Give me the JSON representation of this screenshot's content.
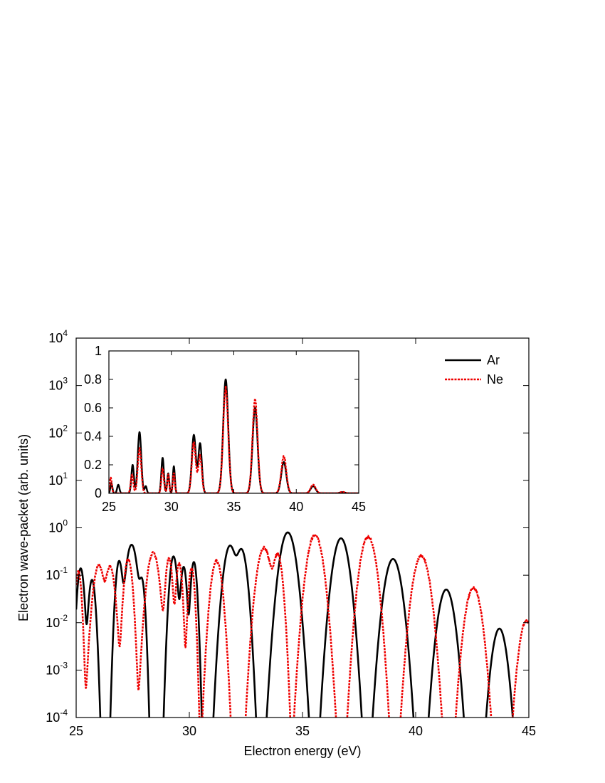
{
  "chart_data": [
    {
      "type": "line",
      "title": "",
      "xlabel": "Electron energy (eV)",
      "ylabel": "Electron wave-packet (arb. units)",
      "xlim": [
        25,
        45
      ],
      "ylim": [
        0.0001,
        10000
      ],
      "yscale": "log",
      "xticks": [
        "25",
        "30",
        "35",
        "40",
        "45"
      ],
      "yticks": [
        {
          "base": "10",
          "exp": "-4"
        },
        {
          "base": "10",
          "exp": "-3"
        },
        {
          "base": "10",
          "exp": "-2"
        },
        {
          "base": "10",
          "exp": "-1"
        },
        {
          "base": "10",
          "exp": "0"
        },
        {
          "base": "10",
          "exp": "1"
        },
        {
          "base": "10",
          "exp": "2"
        },
        {
          "base": "10",
          "exp": "3"
        },
        {
          "base": "10",
          "exp": "4"
        }
      ],
      "legend": "top-right",
      "series": [
        {
          "name": "Ar",
          "color": "#000000",
          "style": "solid",
          "peaks": [
            {
              "center": 25.2,
              "height": 0.14,
              "width": 0.1
            },
            {
              "center": 25.7,
              "height": 0.08,
              "width": 0.1
            },
            {
              "center": 26.9,
              "height": 0.2,
              "width": 0.1
            },
            {
              "center": 27.45,
              "height": 0.44,
              "width": 0.16
            },
            {
              "center": 27.9,
              "height": 0.08,
              "width": 0.09
            },
            {
              "center": 29.3,
              "height": 0.25,
              "width": 0.11
            },
            {
              "center": 29.75,
              "height": 0.15,
              "width": 0.09
            },
            {
              "center": 30.2,
              "height": 0.19,
              "width": 0.09
            },
            {
              "center": 31.8,
              "height": 0.42,
              "width": 0.18
            },
            {
              "center": 32.3,
              "height": 0.35,
              "width": 0.16
            },
            {
              "center": 34.35,
              "height": 0.8,
              "width": 0.22
            },
            {
              "center": 36.7,
              "height": 0.6,
              "width": 0.22
            },
            {
              "center": 39.0,
              "height": 0.22,
              "width": 0.23
            },
            {
              "center": 41.35,
              "height": 0.05,
              "width": 0.22
            },
            {
              "center": 43.7,
              "height": 0.0075,
              "width": 0.2
            }
          ]
        },
        {
          "name": "Ne",
          "color": "#ee0000",
          "style": "dashed",
          "peaks": [
            {
              "center": 25.1,
              "height": 0.12,
              "width": 0.09
            },
            {
              "center": 26.0,
              "height": 0.16,
              "width": 0.16
            },
            {
              "center": 26.5,
              "height": 0.15,
              "width": 0.14
            },
            {
              "center": 27.3,
              "height": 0.22,
              "width": 0.12
            },
            {
              "center": 28.4,
              "height": 0.3,
              "width": 0.17
            },
            {
              "center": 29.1,
              "height": 0.23,
              "width": 0.1
            },
            {
              "center": 29.55,
              "height": 0.18,
              "width": 0.09
            },
            {
              "center": 30.1,
              "height": 0.14,
              "width": 0.09
            },
            {
              "center": 31.2,
              "height": 0.2,
              "width": 0.16
            },
            {
              "center": 33.3,
              "height": 0.38,
              "width": 0.2
            },
            {
              "center": 33.9,
              "height": 0.28,
              "width": 0.14
            },
            {
              "center": 35.55,
              "height": 0.7,
              "width": 0.22
            },
            {
              "center": 37.9,
              "height": 0.65,
              "width": 0.22
            },
            {
              "center": 40.25,
              "height": 0.26,
              "width": 0.23
            },
            {
              "center": 42.55,
              "height": 0.055,
              "width": 0.22
            },
            {
              "center": 44.9,
              "height": 0.011,
              "width": 0.2
            }
          ]
        }
      ]
    },
    {
      "type": "line",
      "title": "",
      "xlabel": "",
      "ylabel": "",
      "xlim": [
        25,
        45
      ],
      "ylim": [
        0,
        1
      ],
      "xticks": [
        "25",
        "30",
        "35",
        "40",
        "45"
      ],
      "yticks": [
        "0",
        "0.2",
        "0.4",
        "0.6",
        "0.8",
        "1"
      ],
      "series": [
        {
          "name": "Ar",
          "color": "#000000",
          "style": "solid",
          "peaks": [
            {
              "center": 25.2,
              "height": 0.07,
              "width": 0.08
            },
            {
              "center": 25.75,
              "height": 0.06,
              "width": 0.09
            },
            {
              "center": 26.9,
              "height": 0.2,
              "width": 0.1
            },
            {
              "center": 27.45,
              "height": 0.43,
              "width": 0.14
            },
            {
              "center": 27.95,
              "height": 0.05,
              "width": 0.08
            },
            {
              "center": 29.3,
              "height": 0.25,
              "width": 0.1
            },
            {
              "center": 29.75,
              "height": 0.14,
              "width": 0.08
            },
            {
              "center": 30.2,
              "height": 0.19,
              "width": 0.08
            },
            {
              "center": 31.8,
              "height": 0.41,
              "width": 0.16
            },
            {
              "center": 32.3,
              "height": 0.35,
              "width": 0.14
            },
            {
              "center": 34.35,
              "height": 0.8,
              "width": 0.2
            },
            {
              "center": 36.7,
              "height": 0.6,
              "width": 0.2
            },
            {
              "center": 39.0,
              "height": 0.22,
              "width": 0.2
            },
            {
              "center": 41.35,
              "height": 0.05,
              "width": 0.2
            },
            {
              "center": 43.7,
              "height": 0.008,
              "width": 0.2
            }
          ]
        },
        {
          "name": "Ne",
          "color": "#ee0000",
          "style": "dashed",
          "peaks": [
            {
              "center": 25.15,
              "height": 0.11,
              "width": 0.08
            },
            {
              "center": 26.85,
              "height": 0.13,
              "width": 0.1
            },
            {
              "center": 27.45,
              "height": 0.31,
              "width": 0.14
            },
            {
              "center": 29.3,
              "height": 0.17,
              "width": 0.1
            },
            {
              "center": 29.75,
              "height": 0.13,
              "width": 0.08
            },
            {
              "center": 30.2,
              "height": 0.14,
              "width": 0.08
            },
            {
              "center": 31.8,
              "height": 0.35,
              "width": 0.16
            },
            {
              "center": 32.3,
              "height": 0.26,
              "width": 0.14
            },
            {
              "center": 34.35,
              "height": 0.74,
              "width": 0.2
            },
            {
              "center": 36.7,
              "height": 0.66,
              "width": 0.2
            },
            {
              "center": 39.0,
              "height": 0.26,
              "width": 0.2
            },
            {
              "center": 41.35,
              "height": 0.06,
              "width": 0.2
            },
            {
              "center": 43.7,
              "height": 0.01,
              "width": 0.2
            }
          ]
        }
      ]
    }
  ]
}
